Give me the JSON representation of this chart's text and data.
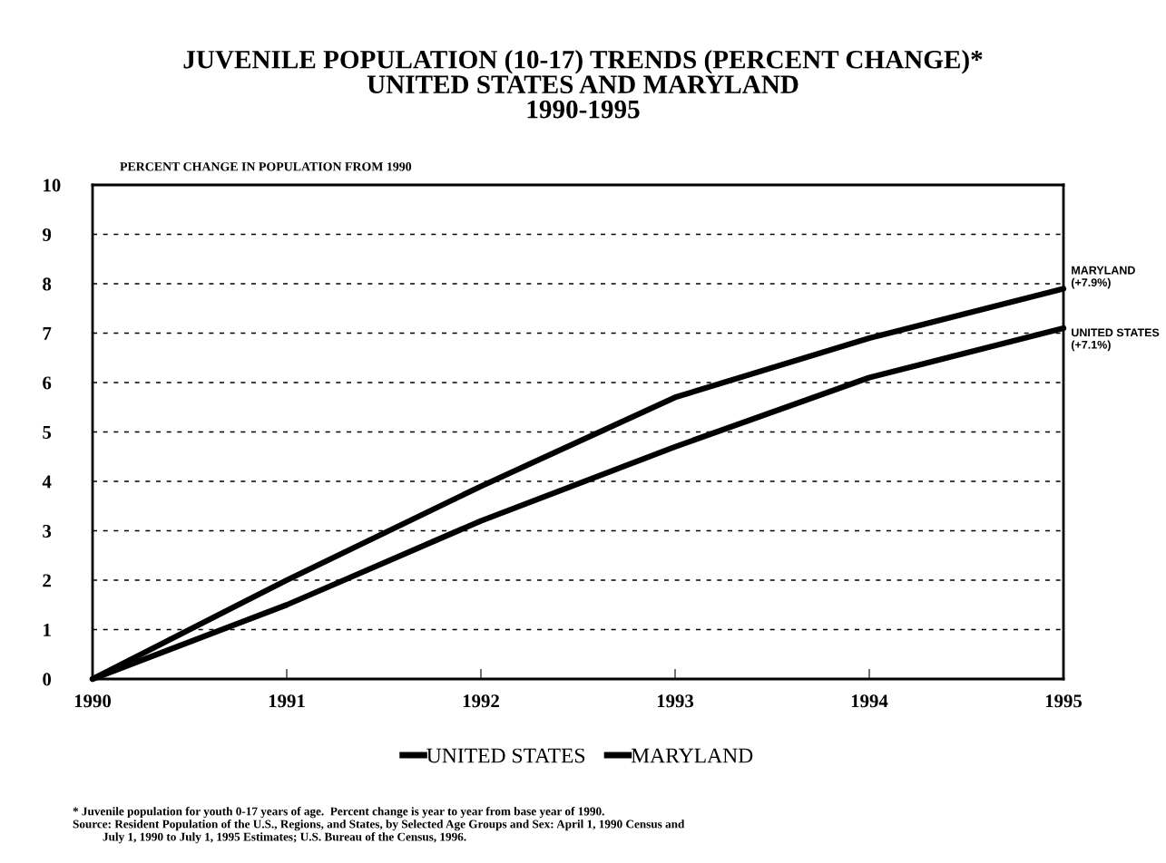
{
  "chart_data": {
    "type": "line",
    "title": "JUVENILE POPULATION (10-17) TRENDS (PERCENT CHANGE)*\nUNITED STATES AND MARYLAND\n1990-1995",
    "ylabel": "PERCENT CHANGE IN POPULATION FROM 1990",
    "x": [
      1990,
      1991,
      1992,
      1993,
      1994,
      1995
    ],
    "series": [
      {
        "name": "UNITED STATES",
        "color": "#000000",
        "values": [
          0,
          1.5,
          3.2,
          4.7,
          6.1,
          7.1
        ]
      },
      {
        "name": "MARYLAND",
        "color": "#000000",
        "values": [
          0,
          2.0,
          3.9,
          5.7,
          6.9,
          7.9
        ]
      }
    ],
    "xlim": [
      1990,
      1995
    ],
    "xticks": [
      1990,
      1991,
      1992,
      1993,
      1994,
      1995
    ],
    "ylim": [
      0,
      10
    ],
    "yticks": [
      0,
      1,
      2,
      3,
      4,
      5,
      6,
      7,
      8,
      9,
      10
    ],
    "grid": "y",
    "legend": "bottom",
    "marker": "none",
    "line_style": "solid",
    "annotations": [
      {
        "text": "MARYLAND\n(+7.9%)",
        "x": 1995,
        "y": 7.9
      },
      {
        "text": "UNITED STATES\n(+7.1%)",
        "x": 1995,
        "y": 7.1
      },
      "* Juvenile population for youth 0-17 years of age.  Percent change is year to year from base year of 1990.\nSource: Resident Population of the U.S., Regions, and States, by Selected Age Groups and Sex: April 1, 1990 Census and\n          July 1, 1990 to July 1, 1995 Estimates; U.S. Bureau of the Census, 1996."
    ]
  }
}
